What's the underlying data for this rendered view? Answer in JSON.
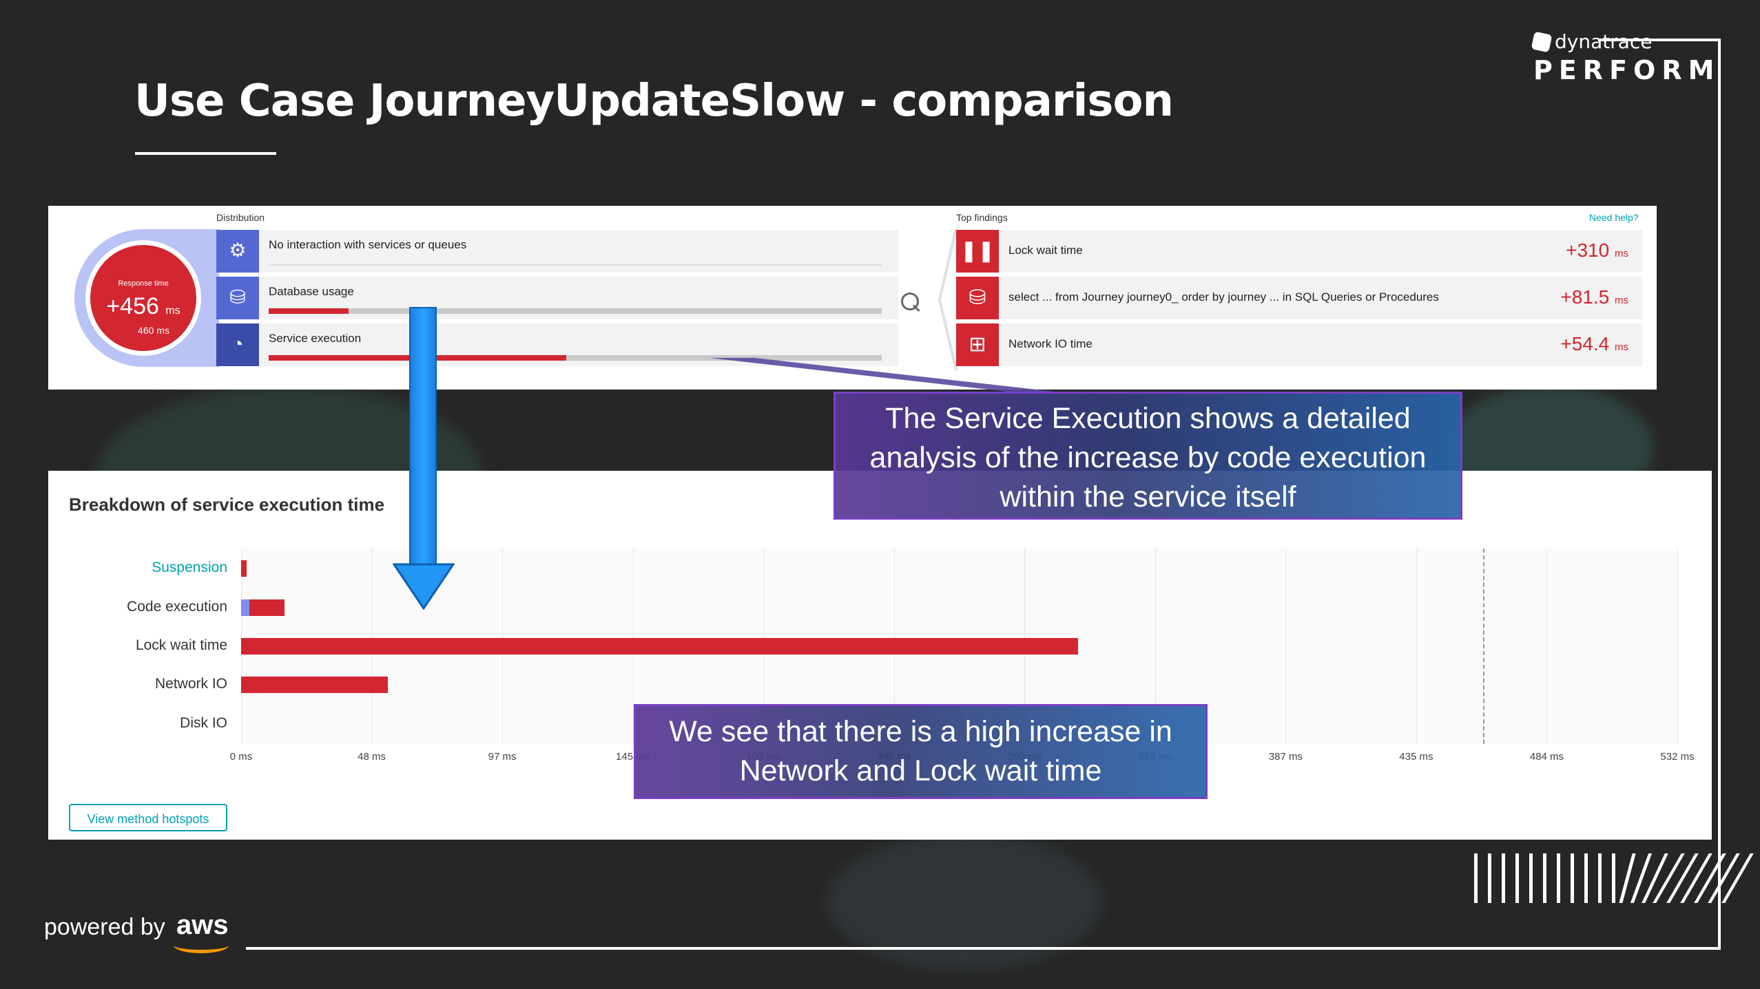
{
  "slide": {
    "title": "Use Case JourneyUpdateSlow - comparison",
    "brand": "dynatrace",
    "brand_event": "PERFORM",
    "powered_by": "powered by",
    "aws": "aws"
  },
  "top_panel": {
    "distribution_label": "Distribution",
    "response_time_label": "Response time",
    "response_time_value": "+456",
    "response_time_unit": "ms",
    "response_time_base": "460  ms",
    "distribution": [
      {
        "label": "No interaction with services or queues",
        "icon": "gear-icon",
        "fill": 0
      },
      {
        "label": "Database usage",
        "icon": "database-icon",
        "fill": 0.13
      },
      {
        "label": "Service execution",
        "icon": "service-icon",
        "fill": 0.485
      }
    ],
    "top_findings_label": "Top findings",
    "need_help": "Need help?",
    "findings": [
      {
        "label": "Lock wait time",
        "value": "+310",
        "unit": "ms",
        "icon": "pause-icon"
      },
      {
        "label": "select ... from Journey journey0_ order by journey ... in SQL Queries or Procedures",
        "value": "+81.5",
        "unit": "ms",
        "icon": "database-icon"
      },
      {
        "label": "Network IO time",
        "value": "+54.4",
        "unit": "ms",
        "icon": "network-icon"
      }
    ]
  },
  "breakdown": {
    "title": "Breakdown of service execution time",
    "categories": [
      "Suspension",
      "Code execution",
      "Lock wait time",
      "Network IO",
      "Disk IO"
    ],
    "ticks": [
      "0 ms",
      "48 ms",
      "97 ms",
      "145 ms",
      "193 ms",
      "242 ms",
      "290 ms",
      "338 ms",
      "387 ms",
      "435 ms",
      "484 ms",
      "532 ms"
    ],
    "button": "View method hotspots",
    "colors": {
      "increase": "#d22630",
      "baseline": "#7b8ff0",
      "link": "#00a1b2"
    }
  },
  "chart_data": {
    "type": "bar",
    "title": "Breakdown of service execution time",
    "orientation": "horizontal",
    "categories": [
      "Suspension",
      "Code execution",
      "Lock wait time",
      "Network IO",
      "Disk IO"
    ],
    "series": [
      {
        "values": [
          0,
          3,
          0,
          0,
          0
        ]
      },
      {
        "values": [
          2,
          13,
          310,
          54.4,
          0
        ]
      }
    ],
    "xlim": [
      0,
      532
    ],
    "x_unit": "ms",
    "reference_line": 460
  },
  "callouts": {
    "service_execution": "The Service Execution shows a detailed analysis of the increase by code execution within the service itself",
    "service_execution_lines": [
      "The Service Execution shows a detailed",
      "analysis of the increase by code execution",
      "within the service itself"
    ],
    "network_lock_lines": [
      "We see that there is a high increase in",
      "Network and Lock wait time"
    ]
  }
}
